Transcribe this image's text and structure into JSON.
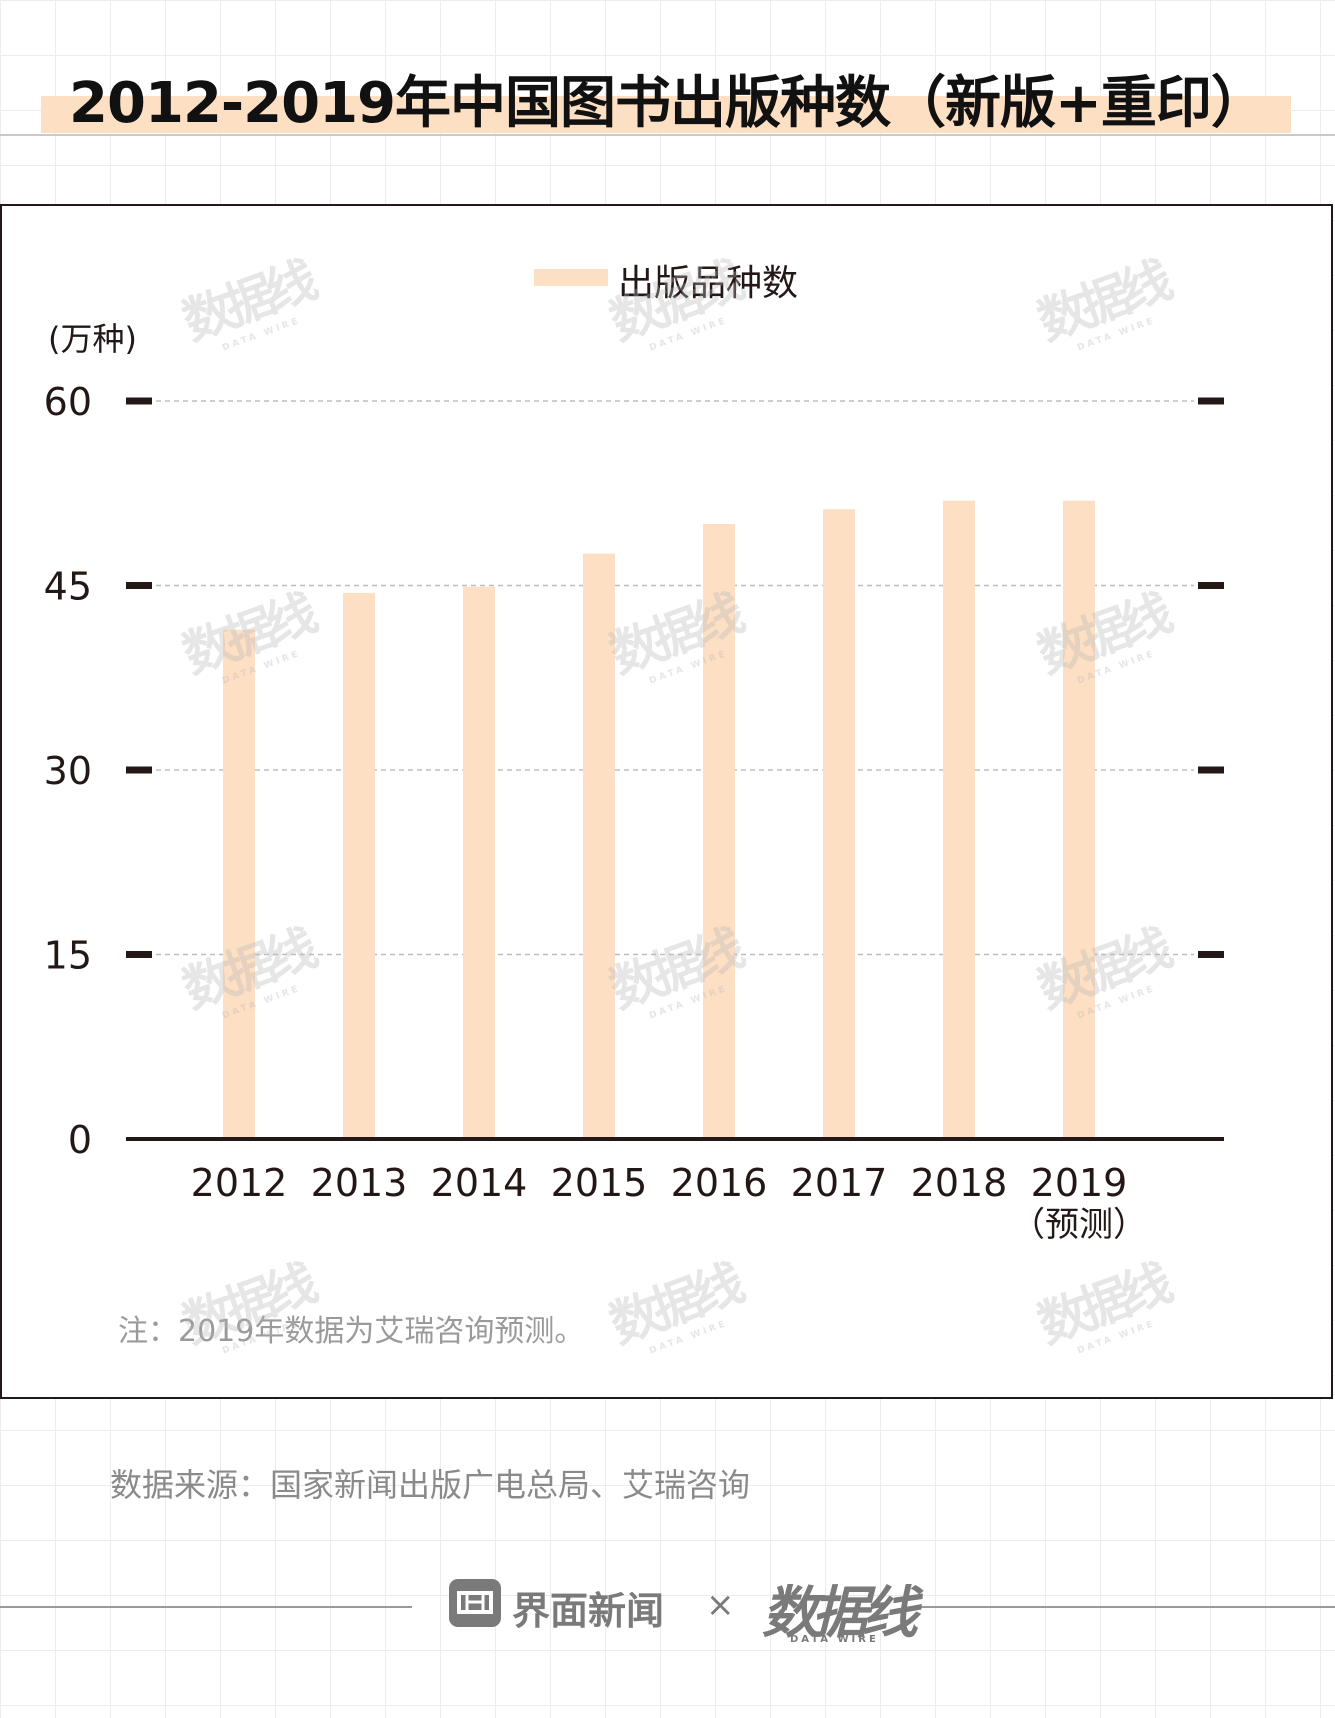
{
  "title": "2012-2019年中国图书出版种数（新版+重印）",
  "legend": {
    "label": "出版品种数",
    "color": "#fddfc3"
  },
  "unit_label": "(万种)",
  "note": "注：2019年数据为艾瑞咨询预测。",
  "source": "数据来源：国家新闻出版广电总局、艾瑞咨询",
  "footer": {
    "partner": "界面新闻",
    "times": "×",
    "brand": "数据线",
    "brand_sub": "DATA WIRE"
  },
  "watermark": {
    "text": "数据线",
    "sub": "DATA WIRE"
  },
  "chart_data": {
    "type": "bar",
    "categories": [
      "2012",
      "2013",
      "2014",
      "2015",
      "2016",
      "2017",
      "2018",
      "2019"
    ],
    "category_sublabels": [
      "",
      "",
      "",
      "",
      "",
      "",
      "",
      "（预测）"
    ],
    "series": [
      {
        "name": "出版品种数",
        "values": [
          41.4,
          44.4,
          44.9,
          47.6,
          50.0,
          51.2,
          51.9,
          51.9
        ],
        "color": "#fddfc3"
      }
    ],
    "yticks": [
      0,
      15,
      30,
      45,
      60
    ],
    "ylim": [
      0,
      60
    ],
    "grid": true,
    "legend_position": "top-center"
  }
}
